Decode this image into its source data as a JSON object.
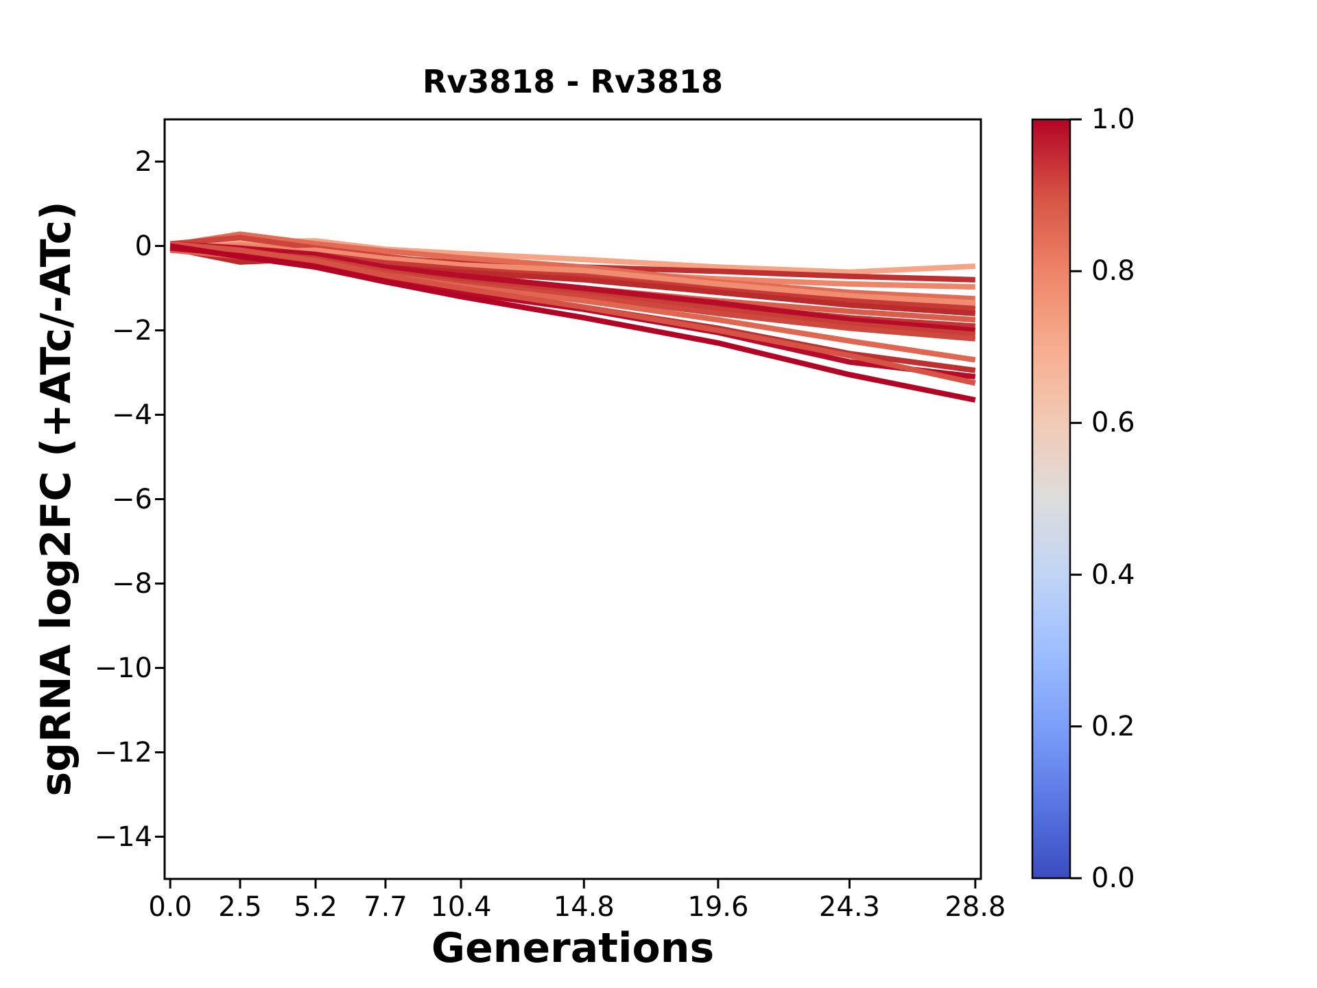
{
  "chart_data": {
    "type": "line",
    "title": "Rv3818 - Rv3818",
    "xlabel": "Generations",
    "ylabel": "sgRNA log2FC (+ATc/-ATc)",
    "x": [
      0.0,
      2.5,
      5.2,
      7.7,
      10.4,
      14.8,
      19.6,
      24.3,
      28.8
    ],
    "xtick_labels": [
      "0.0",
      "2.5",
      "5.2",
      "7.7",
      "10.4",
      "14.8",
      "19.6",
      "24.3",
      "28.8"
    ],
    "ytick_values": [
      2,
      0,
      -2,
      -4,
      -6,
      -8,
      -10,
      -12,
      -14
    ],
    "ytick_labels": [
      "2",
      "0",
      "−2",
      "−4",
      "−6",
      "−8",
      "−10",
      "−12",
      "−14"
    ],
    "xlim": [
      -0.2,
      29.0
    ],
    "ylim": [
      -15.0,
      3.0
    ],
    "grid": false,
    "legend": "none",
    "axis_color": "#000000",
    "background_color": "#ffffff",
    "series": [
      {
        "colormap_value": 0.72,
        "color": "#f5a486",
        "values": [
          0.0,
          0.1,
          0.12,
          -0.08,
          -0.18,
          -0.32,
          -0.5,
          -0.62,
          -0.48
        ]
      },
      {
        "colormap_value": 0.97,
        "color": "#be302f",
        "values": [
          0.0,
          -0.05,
          -0.12,
          -0.28,
          -0.4,
          -0.5,
          -0.6,
          -0.72,
          -0.8
        ]
      },
      {
        "colormap_value": 0.8,
        "color": "#ee8468",
        "values": [
          -0.05,
          0.02,
          -0.1,
          -0.32,
          -0.48,
          -0.6,
          -0.78,
          -0.9,
          -0.97
        ]
      },
      {
        "colormap_value": 0.85,
        "color": "#e26b56",
        "values": [
          0.02,
          0.28,
          0.05,
          -0.12,
          -0.28,
          -0.5,
          -0.85,
          -1.1,
          -1.25
        ]
      },
      {
        "colormap_value": 0.93,
        "color": "#cc443b",
        "values": [
          0.05,
          0.2,
          -0.05,
          -0.25,
          -0.45,
          -0.68,
          -1.0,
          -1.22,
          -1.4
        ]
      },
      {
        "colormap_value": 0.78,
        "color": "#f08c70",
        "values": [
          -0.1,
          -0.15,
          -0.1,
          -0.3,
          -0.45,
          -0.58,
          -0.9,
          -1.18,
          -1.35
        ]
      },
      {
        "colormap_value": 0.95,
        "color": "#c53a35",
        "values": [
          0.0,
          -0.1,
          -0.2,
          -0.4,
          -0.55,
          -0.75,
          -1.05,
          -1.3,
          -1.5
        ]
      },
      {
        "colormap_value": 0.98,
        "color": "#bb2b2c",
        "values": [
          -0.05,
          -0.38,
          -0.3,
          -0.5,
          -0.62,
          -0.8,
          -1.1,
          -1.4,
          -1.6
        ]
      },
      {
        "colormap_value": 0.88,
        "color": "#db5c4b",
        "values": [
          -0.08,
          -0.18,
          -0.3,
          -0.5,
          -0.7,
          -1.0,
          -1.3,
          -1.55,
          -1.75
        ]
      },
      {
        "colormap_value": 0.96,
        "color": "#c23532",
        "values": [
          0.0,
          -0.1,
          -0.25,
          -0.55,
          -0.75,
          -1.05,
          -1.4,
          -1.7,
          -1.9
        ]
      },
      {
        "colormap_value": 0.99,
        "color": "#b70c29",
        "values": [
          0.05,
          -0.05,
          -0.2,
          -0.5,
          -0.7,
          -1.0,
          -1.35,
          -1.75,
          -2.0
        ]
      },
      {
        "colormap_value": 0.94,
        "color": "#c83f38",
        "values": [
          -0.05,
          -0.15,
          -0.3,
          -0.6,
          -0.85,
          -1.15,
          -1.5,
          -1.85,
          -2.1
        ]
      },
      {
        "colormap_value": 0.92,
        "color": "#cf483e",
        "values": [
          0.0,
          -0.2,
          -0.35,
          -0.65,
          -0.9,
          -1.2,
          -1.6,
          -1.95,
          -2.2
        ]
      },
      {
        "colormap_value": 0.86,
        "color": "#e06652",
        "values": [
          -0.1,
          -0.25,
          -0.4,
          -0.7,
          -0.95,
          -1.3,
          -1.75,
          -2.25,
          -2.7
        ]
      },
      {
        "colormap_value": 0.97,
        "color": "#be302f",
        "values": [
          0.0,
          -0.15,
          -0.4,
          -0.75,
          -1.05,
          -1.45,
          -1.95,
          -2.55,
          -2.95
        ]
      },
      {
        "colormap_value": 0.99,
        "color": "#b70c29",
        "values": [
          -0.05,
          -0.2,
          -0.45,
          -0.8,
          -1.1,
          -1.5,
          -2.05,
          -2.75,
          -3.1
        ]
      },
      {
        "colormap_value": 0.9,
        "color": "#d65244",
        "values": [
          0.05,
          -0.1,
          -0.35,
          -0.7,
          -1.0,
          -1.45,
          -2.0,
          -2.6,
          -3.25
        ]
      },
      {
        "colormap_value": 1.0,
        "color": "#b40426",
        "values": [
          0.0,
          -0.25,
          -0.5,
          -0.85,
          -1.2,
          -1.7,
          -2.3,
          -3.05,
          -3.65
        ]
      }
    ],
    "colorbar": {
      "cmap": "coolwarm",
      "min": 0.0,
      "max": 1.0,
      "ticks": [
        "0.0",
        "0.2",
        "0.4",
        "0.6",
        "0.8",
        "1.0"
      ],
      "stops": [
        [
          0.0,
          "#3b4cc0"
        ],
        [
          0.1,
          "#5977e3"
        ],
        [
          0.2,
          "#7b9ff9"
        ],
        [
          0.3,
          "#9ebeff"
        ],
        [
          0.4,
          "#c0d4f5"
        ],
        [
          0.5,
          "#dddcdc"
        ],
        [
          0.6,
          "#f2cab5"
        ],
        [
          0.7,
          "#f7ac8e"
        ],
        [
          0.8,
          "#ee8468"
        ],
        [
          0.9,
          "#d65244"
        ],
        [
          1.0,
          "#b40426"
        ]
      ]
    }
  }
}
